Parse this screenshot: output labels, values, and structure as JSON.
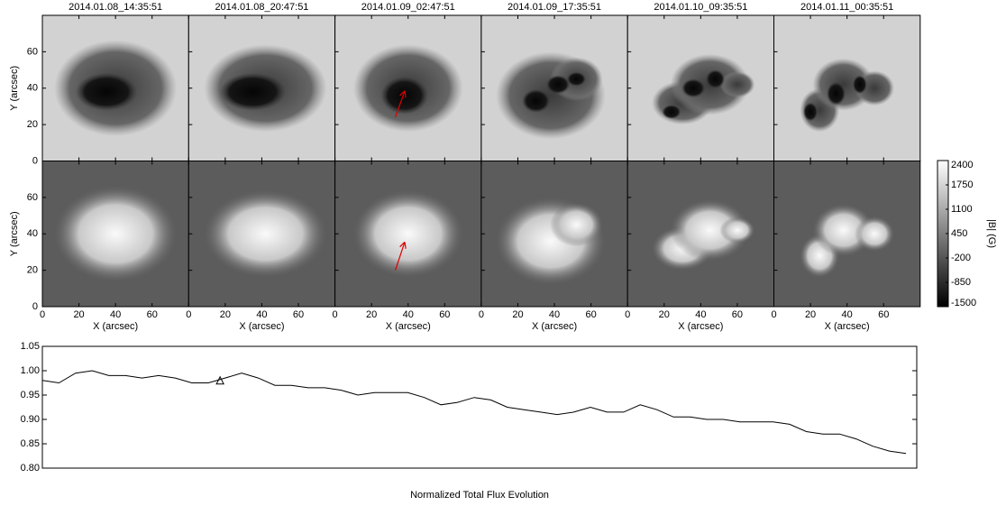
{
  "chart_data": [
    {
      "type": "image-grid",
      "titles": [
        "2014.01.08_14:35:51",
        "2014.01.08_20:47:51",
        "2014.01.09_02:47:51",
        "2014.01.09_17:35:51",
        "2014.01.10_09:35:51",
        "2014.01.11_00:35:51"
      ],
      "ylabel": "Y (arcsec)",
      "xlabel": "X (arcsec)",
      "xlim": [
        0,
        80
      ],
      "ylim": [
        0,
        80
      ],
      "xticks": [
        0,
        20,
        40,
        60
      ],
      "yticks": [
        0,
        20,
        40,
        60
      ],
      "colorbar": {
        "label": "|B| (G)",
        "lim": [
          -1500,
          2400
        ],
        "ticks": [
          2400,
          1750,
          1100,
          450,
          -200,
          -850,
          -1500
        ]
      }
    },
    {
      "type": "line",
      "title": "Normalized Total Flux Evolution",
      "color": "#000000",
      "ylim": [
        0.8,
        1.05
      ],
      "yticks": [
        {
          "value": 0.8,
          "label": "0.80"
        },
        {
          "value": 0.85,
          "label": "0.85"
        },
        {
          "value": 0.9,
          "label": "0.90"
        },
        {
          "value": 0.95,
          "label": "0.95"
        },
        {
          "value": 1.0,
          "label": "1.00"
        },
        {
          "value": 1.05,
          "label": "1.05"
        }
      ],
      "values": [
        0.98,
        0.975,
        0.995,
        1.0,
        0.99,
        0.99,
        0.985,
        0.99,
        0.985,
        0.975,
        0.975,
        0.985,
        0.995,
        0.985,
        0.97,
        0.97,
        0.965,
        0.965,
        0.96,
        0.95,
        0.955,
        0.955,
        0.955,
        0.945,
        0.93,
        0.935,
        0.945,
        0.94,
        0.925,
        0.92,
        0.915,
        0.91,
        0.915,
        0.925,
        0.915,
        0.915,
        0.93,
        0.92,
        0.905,
        0.905,
        0.9,
        0.9,
        0.895,
        0.895,
        0.895,
        0.89,
        0.875,
        0.87,
        0.87,
        0.86,
        0.845,
        0.835,
        0.83
      ],
      "marker": {
        "x": 10.7,
        "y": 0.98
      }
    }
  ]
}
